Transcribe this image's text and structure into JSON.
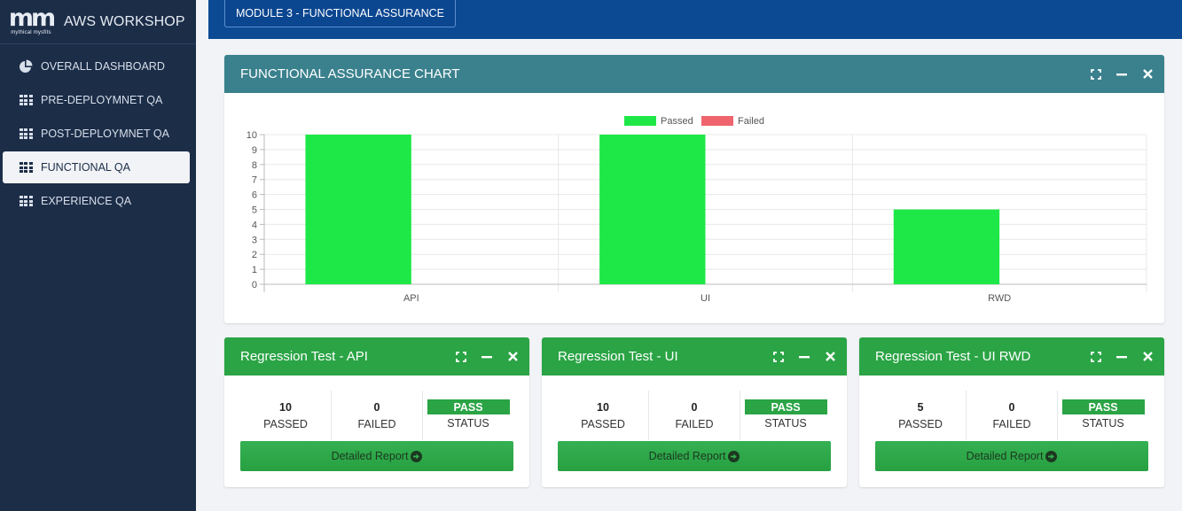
{
  "brand": {
    "logo_mark": "mm",
    "logo_sub": "mythical mysfits",
    "title": "AWS WORKSHOP"
  },
  "sidebar": {
    "items": [
      {
        "label": "OVERALL DASHBOARD",
        "icon": "pie-chart-icon",
        "active": false
      },
      {
        "label": "PRE-DEPLOYMNET QA",
        "icon": "grid-icon",
        "active": false
      },
      {
        "label": "POST-DEPLOYMNET QA",
        "icon": "grid-icon",
        "active": false
      },
      {
        "label": "FUNCTIONAL QA",
        "icon": "grid-icon",
        "active": true
      },
      {
        "label": "EXPERIENCE QA",
        "icon": "grid-icon",
        "active": false
      }
    ]
  },
  "topbar": {
    "module_label": "MODULE 3 - FUNCTIONAL ASSURANCE"
  },
  "chart_panel": {
    "title": "FUNCTIONAL ASSURANCE CHART"
  },
  "chart_data": {
    "type": "bar",
    "categories": [
      "API",
      "UI",
      "RWD"
    ],
    "series": [
      {
        "name": "Passed",
        "values": [
          10,
          10,
          5
        ],
        "color": "#1ee847"
      },
      {
        "name": "Failed",
        "values": [
          0,
          0,
          0
        ],
        "color": "#f0646e"
      }
    ],
    "ylim": [
      0,
      10
    ],
    "yticks": [
      0,
      1,
      2,
      3,
      4,
      5,
      6,
      7,
      8,
      9,
      10
    ],
    "grid": true,
    "legend": "top-center",
    "title": "",
    "xlabel": "",
    "ylabel": ""
  },
  "regression": [
    {
      "title": "Regression Test - API",
      "passed": "10",
      "failed": "0",
      "status": "PASS"
    },
    {
      "title": "Regression Test - UI",
      "passed": "10",
      "failed": "0",
      "status": "PASS"
    },
    {
      "title": "Regression Test - UI RWD",
      "passed": "5",
      "failed": "0",
      "status": "PASS"
    }
  ],
  "labels": {
    "passed": "PASSED",
    "failed": "FAILED",
    "status": "STATUS",
    "report": "Detailed Report"
  },
  "colors": {
    "sidebar": "#1c2d48",
    "topbar": "#0c4a94",
    "chart_header": "#3a818d",
    "success": "#2aa445"
  }
}
